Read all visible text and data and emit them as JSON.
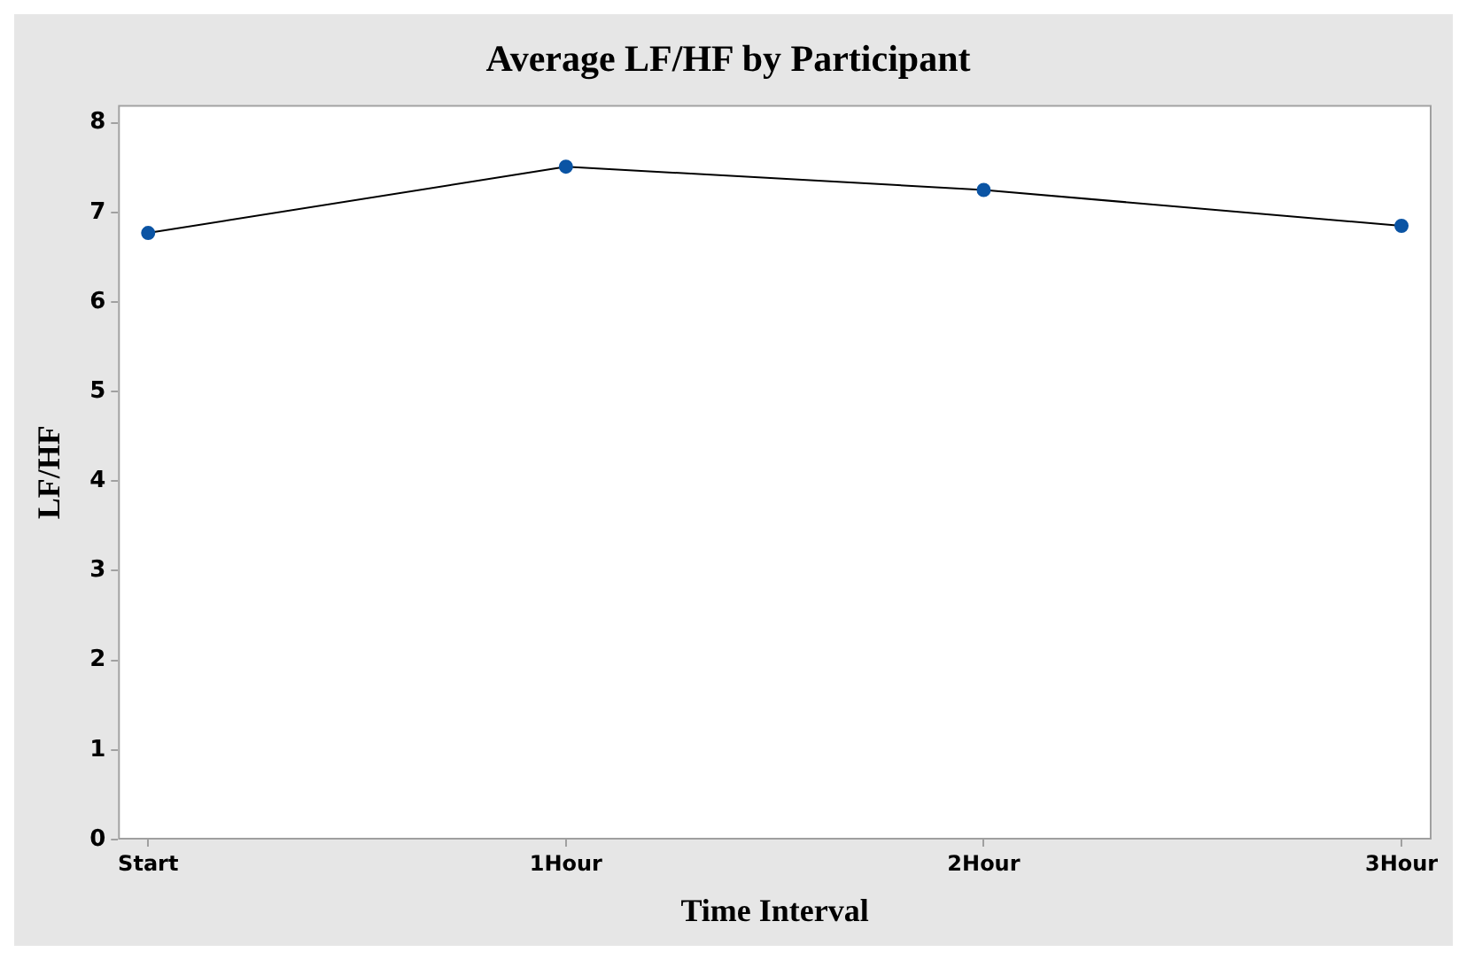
{
  "chart_data": {
    "type": "line",
    "title": "Average LF/HF by Participant",
    "xlabel": "Time Interval",
    "ylabel": "LF/HF",
    "categories": [
      "Start",
      "1Hour",
      "2Hour",
      "3Hour"
    ],
    "series": [
      {
        "color": "#0b54a4",
        "values": [
          6.77,
          7.51,
          7.25,
          6.85
        ]
      }
    ],
    "ylim": [
      0,
      8.2
    ],
    "yticks": [
      0,
      1,
      2,
      3,
      4,
      5,
      6,
      7,
      8
    ],
    "grid": false,
    "legend": false,
    "marker": "circle",
    "line_style": "solid"
  }
}
